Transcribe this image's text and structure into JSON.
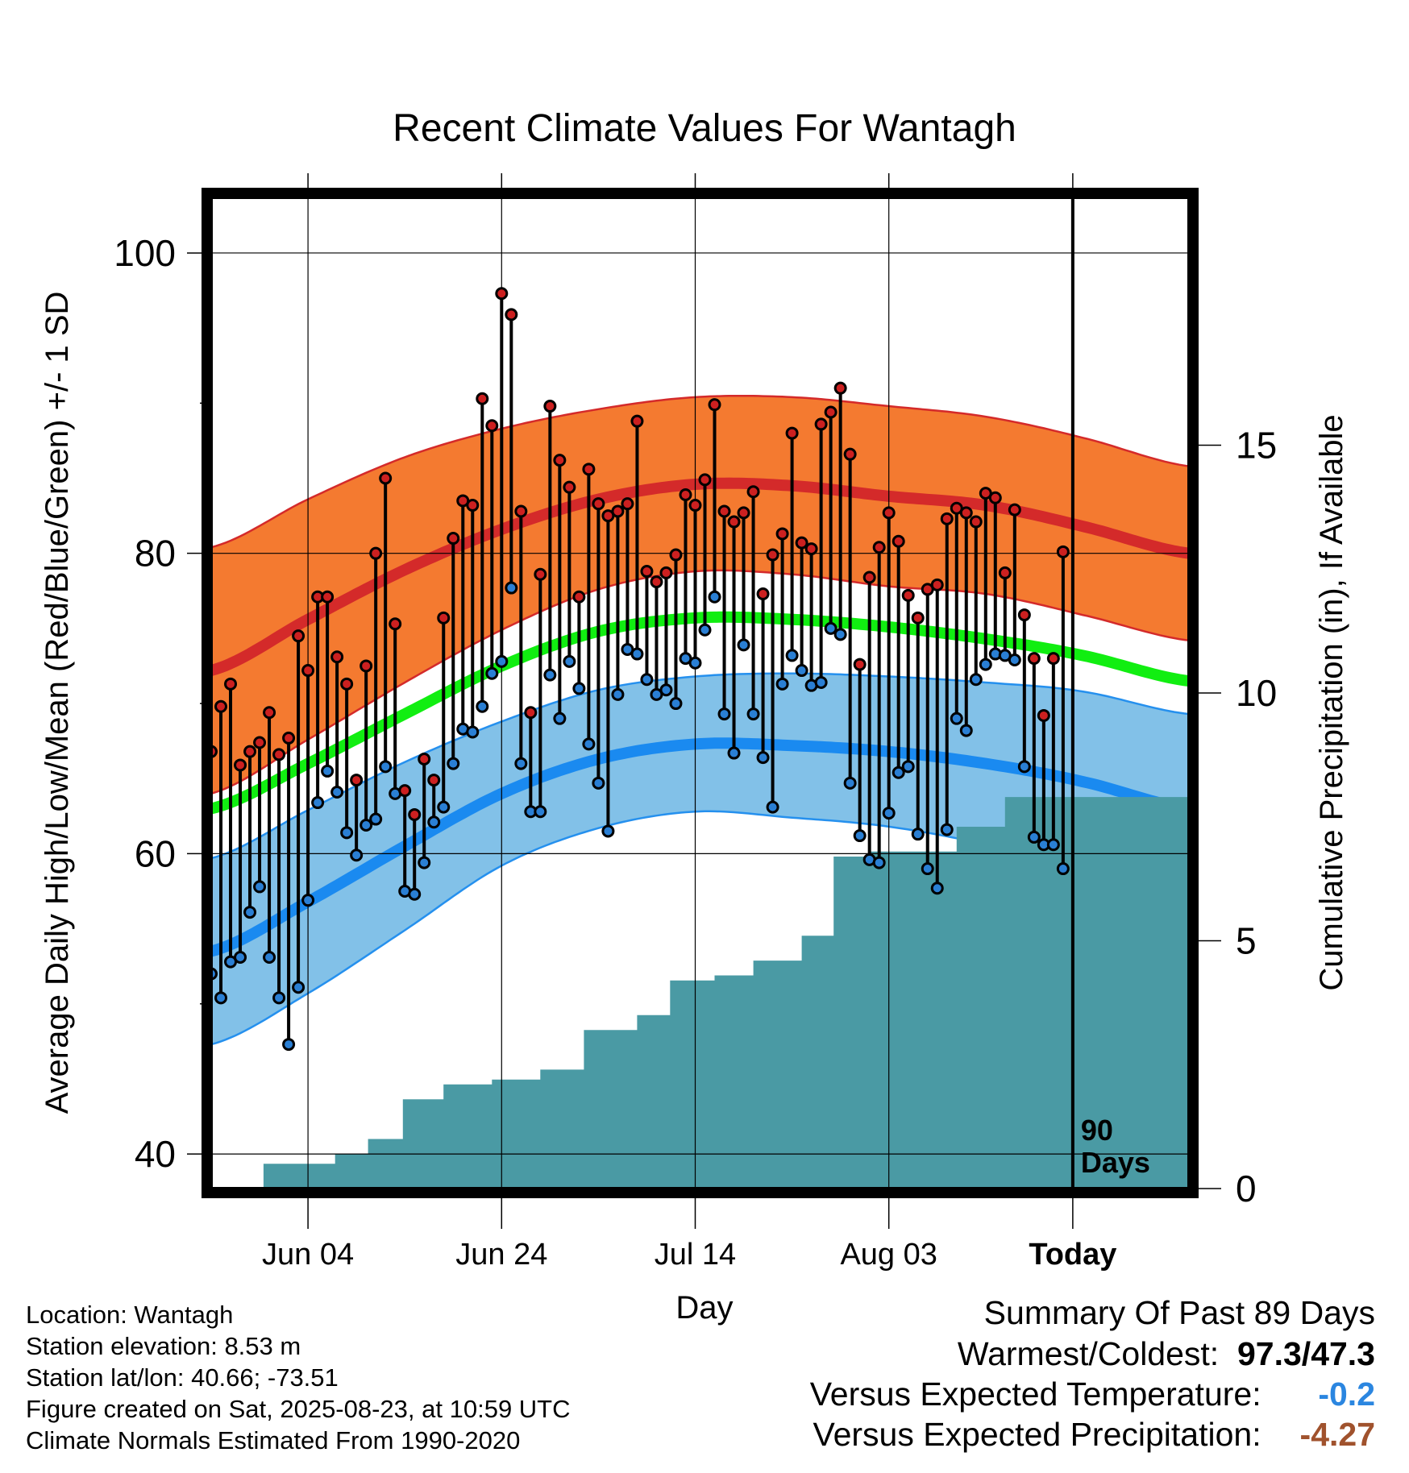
{
  "chart_data": {
    "type": "line",
    "title": "Recent Climate Values For Wantagh",
    "xlabel": "Day",
    "ylabel_left": "Average Daily High/Low/Mean (Red/Blue/Green) +/- 1 SD",
    "ylabel_right": "Cumulative Precipitation (in), If Available",
    "x_tick_labels": [
      "Jun 04",
      "Jun 24",
      "Jul 14",
      "Aug 03",
      "Today"
    ],
    "y_left_ticks": [
      40,
      60,
      80,
      100
    ],
    "y_left_range": [
      37.7,
      103.7
    ],
    "y_right_ticks": [
      0,
      5,
      10,
      15
    ],
    "y_right_range": [
      0,
      20
    ],
    "day_range": [
      1,
      102
    ],
    "today_day": 90,
    "today_label": [
      "90",
      "Days"
    ],
    "grid": true,
    "legend": "none",
    "normals": {
      "days": [
        1,
        11,
        21,
        31,
        41,
        51,
        61,
        71,
        81,
        91,
        102
      ],
      "high_mean": [
        72.2,
        75.6,
        78.9,
        81.6,
        83.6,
        84.6,
        84.5,
        83.8,
        83.2,
        81.8,
        80.0
      ],
      "high_sd": [
        8.2,
        8.0,
        7.5,
        6.7,
        6.0,
        5.8,
        5.9,
        6.0,
        5.9,
        5.9,
        5.8
      ],
      "mean_normal": [
        63.0,
        66.0,
        69.3,
        72.5,
        74.8,
        75.7,
        75.6,
        75.1,
        74.3,
        73.2,
        71.5
      ],
      "low_mean": [
        53.5,
        56.8,
        60.5,
        64.0,
        66.3,
        67.3,
        67.2,
        66.8,
        66.0,
        64.8,
        63.0
      ],
      "low_sd": [
        6.2,
        6.1,
        5.6,
        4.8,
        4.6,
        4.5,
        4.8,
        5.0,
        5.4,
        6.0,
        6.3
      ]
    },
    "series": [
      {
        "name": "High",
        "color": "#cc2020",
        "values": [
          66.8,
          69.8,
          71.3,
          65.9,
          66.8,
          67.4,
          69.4,
          66.6,
          67.7,
          74.5,
          72.2,
          77.1,
          77.1,
          73.1,
          71.3,
          64.9,
          72.5,
          80.0,
          85.0,
          75.3,
          64.2,
          62.6,
          66.3,
          64.9,
          75.7,
          81.0,
          83.5,
          83.2,
          90.3,
          88.5,
          97.3,
          95.9,
          82.8,
          69.4,
          78.6,
          89.8,
          86.2,
          84.4,
          77.1,
          85.6,
          83.3,
          82.5,
          82.8,
          83.3,
          88.8,
          78.8,
          78.1,
          78.7,
          79.9,
          83.9,
          83.2,
          84.9,
          89.9,
          82.8,
          82.1,
          82.7,
          84.1,
          77.3,
          79.9,
          81.3,
          88.0,
          80.7,
          80.3,
          88.6,
          89.4,
          91.0,
          86.6,
          72.6,
          78.4,
          80.4,
          82.7,
          80.8,
          77.2,
          75.7,
          77.6,
          77.9,
          82.3,
          83.0,
          82.7,
          82.1,
          84.0,
          83.7,
          78.7,
          82.9,
          75.9,
          73.0,
          69.2,
          73.0,
          80.1
        ]
      },
      {
        "name": "Low",
        "color": "#2a7fd4",
        "values": [
          52.0,
          50.4,
          52.8,
          53.1,
          56.1,
          57.8,
          53.1,
          50.4,
          47.3,
          51.1,
          56.9,
          63.4,
          65.5,
          64.1,
          61.4,
          59.9,
          61.9,
          62.3,
          65.8,
          64.0,
          57.5,
          57.3,
          59.4,
          62.1,
          63.1,
          66.0,
          68.3,
          68.1,
          69.8,
          72.0,
          72.8,
          77.7,
          66.0,
          62.8,
          62.8,
          71.9,
          69.0,
          72.8,
          71.0,
          67.3,
          64.7,
          61.5,
          70.6,
          73.6,
          73.3,
          71.6,
          70.6,
          70.9,
          70.0,
          73.0,
          72.7,
          74.9,
          77.1,
          69.3,
          66.7,
          73.9,
          69.3,
          66.4,
          63.1,
          71.3,
          73.2,
          72.2,
          71.2,
          71.4,
          75.0,
          74.6,
          64.7,
          61.2,
          59.6,
          59.4,
          62.7,
          65.4,
          65.8,
          61.3,
          59.0,
          57.7,
          61.6,
          69.0,
          68.2,
          71.6,
          72.6,
          73.3,
          73.2,
          72.9,
          65.8,
          61.1,
          60.6,
          60.6,
          59.0
        ]
      }
    ],
    "precipitation": {
      "name": "Cumulative Precipitation",
      "color": "#4a9aa4",
      "days": [
        1,
        6.4,
        11.2,
        13.8,
        17.2,
        20.8,
        25,
        30,
        35,
        39.5,
        45,
        48.4,
        53,
        57,
        62,
        65.3,
        69,
        78,
        83,
        90,
        102
      ],
      "values": [
        0,
        0.5,
        0.5,
        0.7,
        1.0,
        1.8,
        2.1,
        2.2,
        2.4,
        3.2,
        3.5,
        4.2,
        4.3,
        4.6,
        5.1,
        6.7,
        6.8,
        7.3,
        7.9,
        7.9,
        7.9
      ]
    }
  },
  "info": {
    "location": "Location: Wantagh",
    "elevation": "Station elevation: 8.53 m",
    "latlon": "Station lat/lon: 40.66; -73.51",
    "created": "Figure created on Sat, 2025-08-23, at 10:59 UTC",
    "normals": "Climate Normals Estimated From 1990-2020"
  },
  "summary": {
    "title": "Summary Of Past 89 Days",
    "warm_cold_label": "Warmest/Coldest:",
    "warm_cold_value": "97.3/47.3",
    "temp_label": "Versus Expected Temperature:",
    "temp_value": "-0.2",
    "temp_color": "#2b86e0",
    "precip_label": "Versus Expected Precipitation:",
    "precip_value": "-4.27",
    "precip_color": "#a0522d"
  }
}
